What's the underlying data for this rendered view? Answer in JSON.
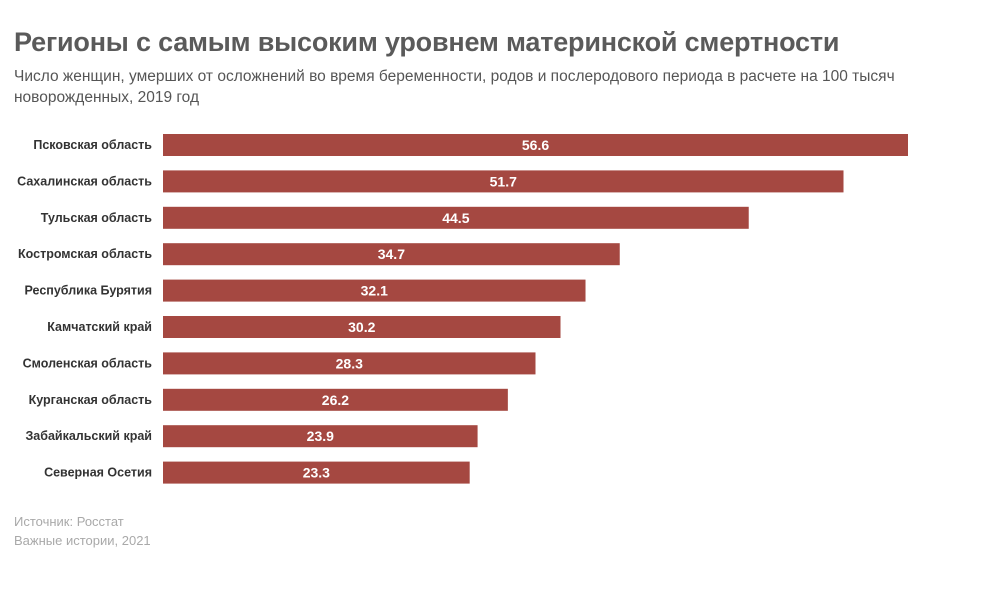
{
  "header": {
    "title": "Регионы с самым высоким уровнем материнской смертности",
    "subtitle": "Число женщин, умерших от осложнений во время беременности, родов и послеродового периода в расчете на 100 тысяч новорожденных, 2019 год"
  },
  "footer": {
    "source": "Источник: Росстат",
    "credit": "Важные истории, 2021"
  },
  "colors": {
    "bar": "#a54841",
    "label": "#333333",
    "value_text": "#ffffff"
  },
  "chart_data": {
    "type": "bar",
    "orientation": "horizontal",
    "title": "Регионы с самым высоким уровнем материнской смертности",
    "categories": [
      "Псковская область",
      "Сахалинская область",
      "Тульская область",
      "Костромская область",
      "Республика Бурятия",
      "Камчатский край",
      "Смоленская область",
      "Курганская область",
      "Забайкальский край",
      "Северная Осетия"
    ],
    "values": [
      56.6,
      51.7,
      44.5,
      34.7,
      32.1,
      30.2,
      28.3,
      26.2,
      23.9,
      23.3
    ],
    "value_labels": [
      "56.6",
      "51.7",
      "44.5",
      "34.7",
      "32.1",
      "30.2",
      "28.3",
      "26.2",
      "23.9",
      "23.3"
    ],
    "xlim": [
      0,
      56.6
    ],
    "grid": false,
    "legend": "none"
  }
}
